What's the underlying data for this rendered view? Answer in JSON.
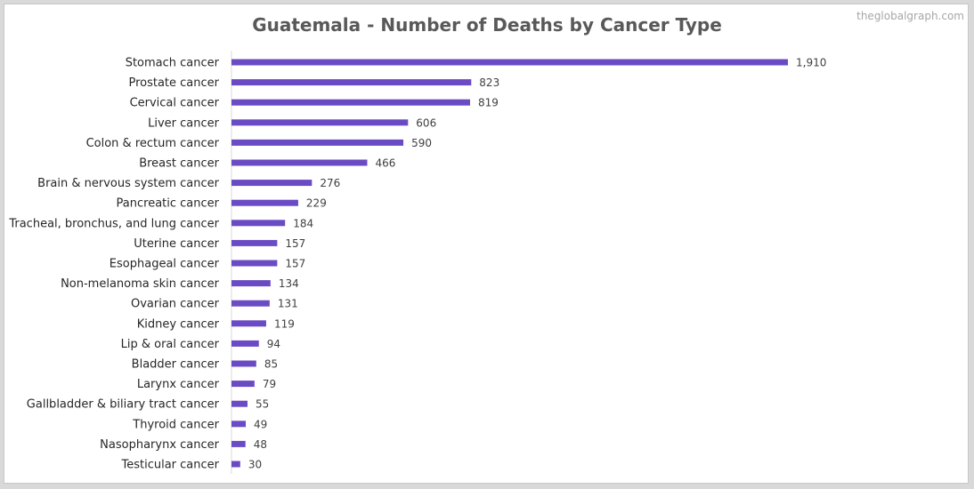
{
  "watermark": "theglobalgraph.com",
  "chart_data": {
    "type": "bar",
    "orientation": "horizontal",
    "title": "Guatemala - Number of Deaths by Cancer Type",
    "categories": [
      "Stomach cancer",
      "Prostate cancer",
      "Cervical cancer",
      "Liver cancer",
      "Colon & rectum cancer",
      "Breast cancer",
      "Brain & nervous system cancer",
      "Pancreatic cancer",
      "Tracheal, bronchus, and lung cancer",
      "Uterine cancer",
      "Esophageal cancer",
      "Non-melanoma skin cancer",
      "Ovarian cancer",
      "Kidney cancer",
      "Lip & oral cancer",
      "Bladder cancer",
      "Larynx cancer",
      "Gallbladder & biliary tract cancer",
      "Thyroid cancer",
      "Nasopharynx cancer",
      "Testicular cancer"
    ],
    "values": [
      1910,
      823,
      819,
      606,
      590,
      466,
      276,
      229,
      184,
      157,
      157,
      134,
      131,
      119,
      94,
      85,
      79,
      55,
      49,
      48,
      30
    ],
    "value_labels": [
      "1,910",
      "823",
      "819",
      "606",
      "590",
      "466",
      "276",
      "229",
      "184",
      "157",
      "157",
      "134",
      "131",
      "119",
      "94",
      "85",
      "79",
      "55",
      "49",
      "48",
      "30"
    ],
    "xlim": [
      0,
      2000
    ],
    "bar_color": "#6a4bc4",
    "grid": false,
    "legend": "none"
  }
}
